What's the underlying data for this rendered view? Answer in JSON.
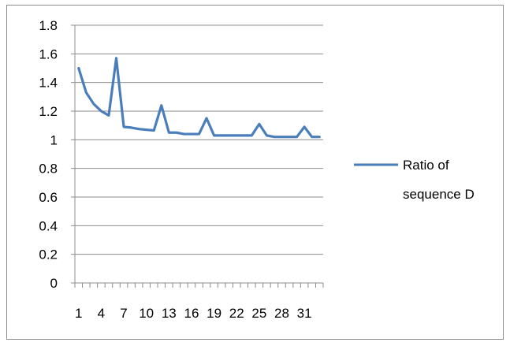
{
  "chart_data": {
    "type": "line",
    "title": "",
    "xlabel": "",
    "ylabel": "",
    "x": [
      1,
      2,
      3,
      4,
      5,
      6,
      7,
      8,
      9,
      10,
      11,
      12,
      13,
      14,
      15,
      16,
      17,
      18,
      19,
      20,
      21,
      22,
      23,
      24,
      25,
      26,
      27,
      28,
      29,
      30,
      31,
      32,
      33
    ],
    "x_tick_labels": [
      "1",
      "4",
      "7",
      "10",
      "13",
      "16",
      "19",
      "22",
      "25",
      "28",
      "31"
    ],
    "ylim": [
      0,
      1.8
    ],
    "y_ticks": [
      "0",
      "0.2",
      "0.4",
      "0.6",
      "0.8",
      "1",
      "1.2",
      "1.4",
      "1.6",
      "1.8"
    ],
    "series": [
      {
        "name": "Ratio of sequence D",
        "color": "#4a7ebb",
        "values": [
          1.5,
          1.33,
          1.25,
          1.2,
          1.17,
          1.57,
          1.09,
          1.085,
          1.075,
          1.07,
          1.065,
          1.24,
          1.05,
          1.05,
          1.04,
          1.04,
          1.04,
          1.15,
          1.03,
          1.03,
          1.03,
          1.03,
          1.03,
          1.03,
          1.11,
          1.03,
          1.02,
          1.02,
          1.02,
          1.02,
          1.09,
          1.02,
          1.02
        ]
      }
    ],
    "legend": {
      "position": "right",
      "label_lines": [
        "Ratio of",
        "sequence D"
      ]
    },
    "grid": "horizontal"
  }
}
